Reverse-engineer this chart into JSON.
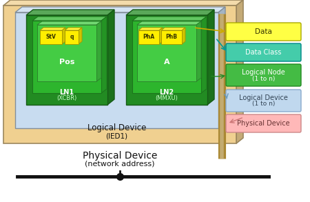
{
  "fig_width": 4.5,
  "fig_height": 2.93,
  "dpi": 100,
  "physical_device_text": "Physical Device",
  "physical_device_sub": "(network address)",
  "logical_device_text": "Logical Device",
  "logical_device_sub": "(IED1)",
  "ln1_label": "LN1",
  "ln1_sub": "(XCBR)",
  "ln1_data_label": "Pos",
  "ln2_label": "LN2",
  "ln2_sub": "(MMXU)",
  "ln2_data_label": "A",
  "da_stv": "StV",
  "da_q": "q",
  "da_pha": "PhA",
  "da_phb": "PhB",
  "colors": {
    "bg": "#ffffff",
    "outer_tan_face": "#F0D090",
    "outer_tan_top": "#F8E4B0",
    "outer_tan_right": "#D4AA60",
    "outer_tan_edge": "#C09040",
    "ld_face": "#C8DCF0",
    "ld_top": "#DCEcF8",
    "ld_right": "#A8C0DC",
    "ld_edge": "#88AACC",
    "ln_dark_face": "#228B22",
    "ln_dark_top": "#33A833",
    "ln_dark_right": "#1A6B1A",
    "ln_dark_edge": "#145014",
    "ln_mid_face": "#2DB52D",
    "ln_mid_top": "#44CC44",
    "ln_mid_right": "#228822",
    "ln_inner_face": "#44CC44",
    "ln_inner_top": "#66DD66",
    "ln_inner_right": "#33AA33",
    "ln_inner_edge": "#228822",
    "da_face": "#FFEE00",
    "da_top": "#FFFF88",
    "da_right": "#CCBB00",
    "da_edge": "#AAAA00",
    "leg_data": "#FFFF44",
    "leg_dc": "#44CCAA",
    "leg_ln": "#44BB44",
    "leg_ld": "#C0D8EE",
    "leg_pd": "#FFB8B8",
    "arrow_yellow": "#CCAA00",
    "arrow_teal": "#009999",
    "connector_bar": "#AA8833",
    "bus": "#111111",
    "text_ld": "#2244AA",
    "text_white": "#ffffff",
    "text_dark": "#111111",
    "text_tan": "#663300"
  }
}
